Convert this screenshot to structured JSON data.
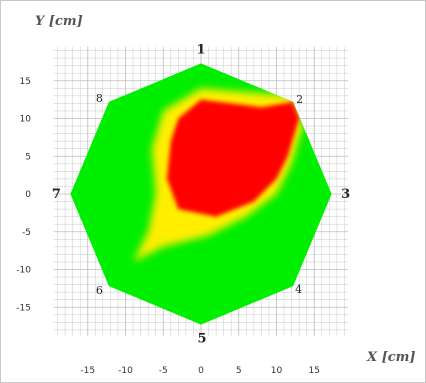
{
  "chart_data": {
    "type": "heatmap",
    "xlabel": "X [cm]",
    "ylabel": "Y [cm]",
    "xlim": [
      -20,
      20
    ],
    "ylim": [
      -20,
      20
    ],
    "grid": true,
    "xticks": [
      -15,
      -10,
      -5,
      0,
      5,
      10,
      15
    ],
    "yticks": [
      15,
      10,
      5,
      0,
      -5,
      -10,
      -15
    ],
    "vertices": [
      {
        "label": "1",
        "x": 0,
        "y": 17.3
      },
      {
        "label": "2",
        "x": 12.2,
        "y": 12.2
      },
      {
        "label": "3",
        "x": 17.3,
        "y": 0
      },
      {
        "label": "4",
        "x": 12.2,
        "y": -12.2
      },
      {
        "label": "5",
        "x": 0,
        "y": -17.3
      },
      {
        "label": "6",
        "x": -12.2,
        "y": -12.2
      },
      {
        "label": "7",
        "x": -17.3,
        "y": 0
      },
      {
        "label": "8",
        "x": -12.2,
        "y": 12.2
      }
    ],
    "colors": {
      "low": "#00ee00",
      "mid": "#ffee00",
      "high": "#ff0000",
      "grid": "#bdbdbd"
    },
    "hot_region": [
      [
        -3,
        10
      ],
      [
        0,
        12.5
      ],
      [
        4,
        12
      ],
      [
        8,
        11.5
      ],
      [
        12.2,
        12.2
      ],
      [
        13,
        10
      ],
      [
        11.5,
        5
      ],
      [
        10,
        2
      ],
      [
        7,
        -1
      ],
      [
        2,
        -3
      ],
      [
        -3,
        -2
      ],
      [
        -4.5,
        2
      ],
      [
        -4,
        7
      ]
    ],
    "warm_region": [
      [
        -5,
        11
      ],
      [
        0,
        14
      ],
      [
        6,
        13.5
      ],
      [
        12.2,
        13
      ],
      [
        13.5,
        9
      ],
      [
        12,
        4
      ],
      [
        10,
        0
      ],
      [
        6,
        -3
      ],
      [
        1,
        -5.5
      ],
      [
        -5,
        -7
      ],
      [
        -9,
        -9
      ],
      [
        -7,
        -5
      ],
      [
        -6,
        0
      ],
      [
        -6.5,
        6
      ]
    ]
  }
}
